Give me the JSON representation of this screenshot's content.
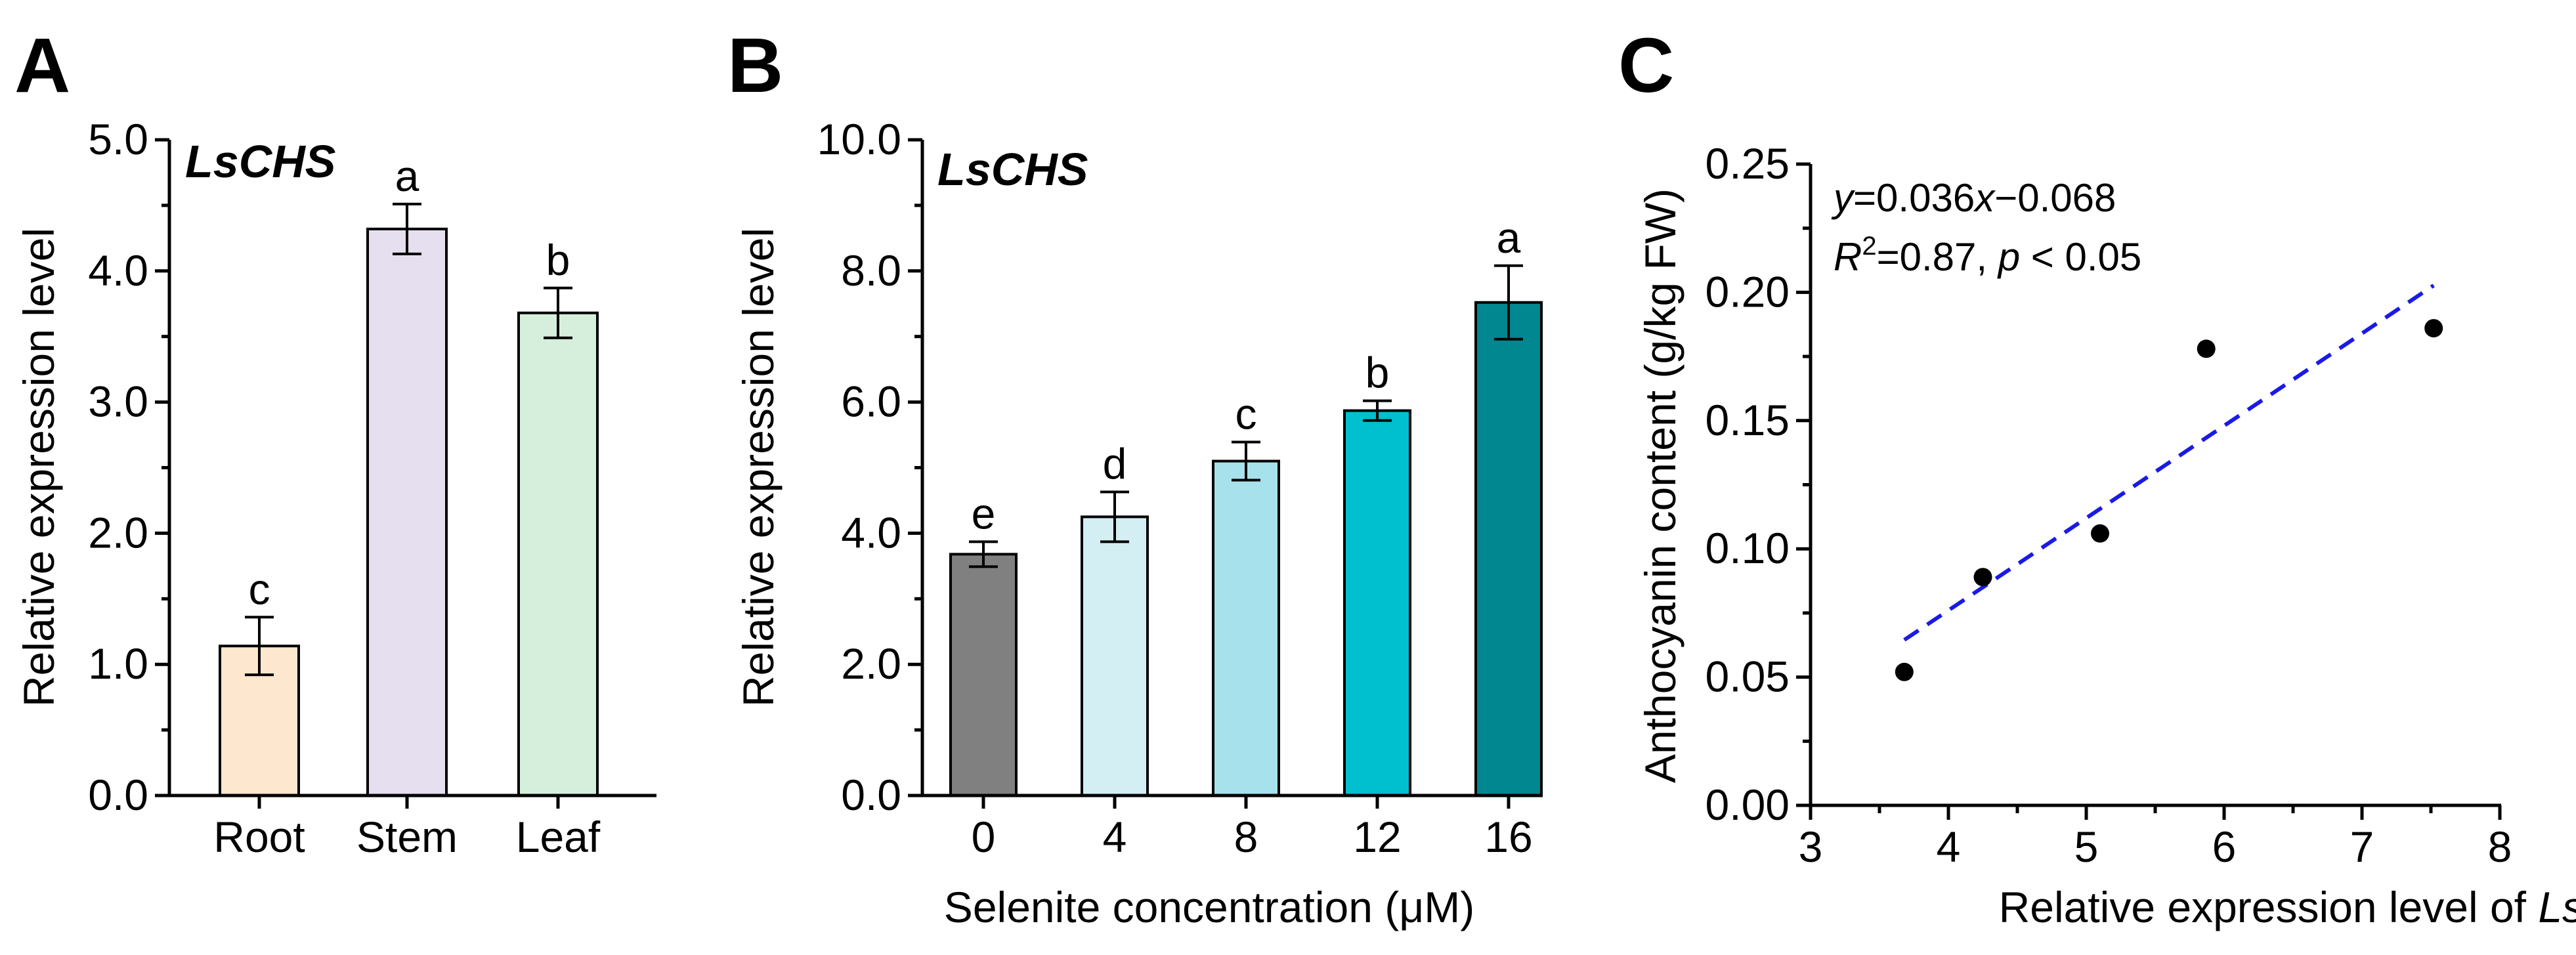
{
  "chart_data": [
    {
      "panel_label": "A",
      "type": "bar",
      "title": "LsCHS",
      "xlabel": "",
      "ylabel": "Relative expression level",
      "categories": [
        "Root",
        "Stem",
        "Leaf"
      ],
      "values": [
        1.14,
        4.32,
        3.68
      ],
      "errors": [
        0.22,
        0.19,
        0.19
      ],
      "significance": [
        "c",
        "a",
        "b"
      ],
      "colors": [
        "#fde7cf",
        "#e6dff0",
        "#d5efdc"
      ],
      "ylim": [
        0,
        5
      ],
      "yticks": [
        0,
        1,
        2,
        3,
        4,
        5
      ],
      "ytick_labels": [
        "0.0",
        "1.0",
        "2.0",
        "3.0",
        "4.0",
        "5.0"
      ]
    },
    {
      "panel_label": "B",
      "type": "bar",
      "title": "LsCHS",
      "xlabel": "Selenite concentration (μM)",
      "ylabel": "Relative expression level",
      "categories": [
        "0",
        "4",
        "8",
        "12",
        "16"
      ],
      "values": [
        3.68,
        4.25,
        5.1,
        5.87,
        7.52
      ],
      "errors": [
        0.19,
        0.38,
        0.29,
        0.15,
        0.56
      ],
      "significance": [
        "e",
        "d",
        "c",
        "b",
        "a"
      ],
      "colors": [
        "#808080",
        "#d3eff3",
        "#a7e2ec",
        "#00bfcf",
        "#00878f"
      ],
      "ylim": [
        0,
        10
      ],
      "yticks": [
        0,
        2,
        4,
        6,
        8,
        10
      ],
      "ytick_labels": [
        "0.0",
        "2.0",
        "4.0",
        "6.0",
        "8.0",
        "10.0"
      ]
    },
    {
      "panel_label": "C",
      "type": "scatter",
      "xlabel": "Relative expression level of",
      "xlabel_italic": "LsCHS",
      "ylabel": "Anthocyanin content (g/kg FW)",
      "x": [
        3.68,
        4.25,
        5.1,
        5.87,
        7.52
      ],
      "y": [
        0.052,
        0.089,
        0.106,
        0.178,
        0.186
      ],
      "fit_line": {
        "x": [
          3.68,
          7.52
        ],
        "y": [
          0.0645,
          0.2027
        ],
        "color": "#1a1ae6"
      },
      "equation": {
        "y": "y",
        "rhs": "=0.036",
        "x": "x",
        "tail": "−0.068"
      },
      "r2": {
        "R": "R",
        "sup": "2",
        "val": "=0.87, ",
        "p": "p",
        "pval": " < 0.05"
      },
      "xlim": [
        3,
        8
      ],
      "ylim": [
        0,
        0.25
      ],
      "xticks": [
        3,
        4,
        5,
        6,
        7,
        8
      ],
      "xtick_labels": [
        "3",
        "4",
        "5",
        "6",
        "7",
        "8"
      ],
      "yticks": [
        0,
        0.05,
        0.1,
        0.15,
        0.2,
        0.25
      ],
      "ytick_labels": [
        "0.00",
        "0.05",
        "0.10",
        "0.15",
        "0.20",
        "0.25"
      ]
    }
  ]
}
